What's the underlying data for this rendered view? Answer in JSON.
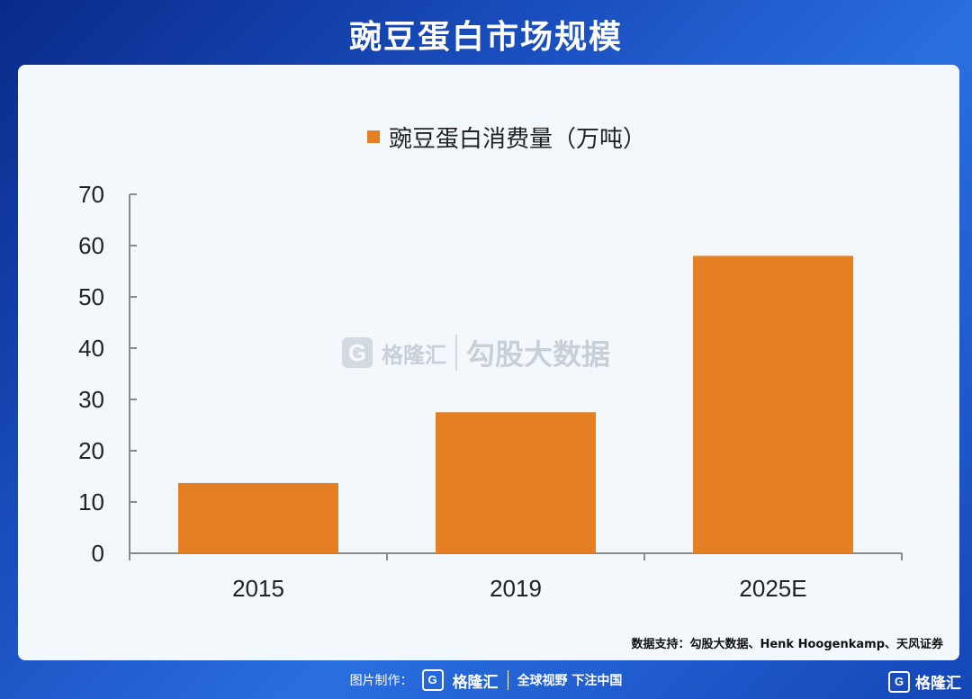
{
  "page": {
    "title": "豌豆蛋白市场规模"
  },
  "chart_data": {
    "type": "bar",
    "categories": [
      "2015",
      "2019",
      "2025E"
    ],
    "series": [
      {
        "name": "豌豆蛋白消费量（万吨）",
        "values": [
          13.7,
          27.5,
          58
        ],
        "color": "#e47f24"
      }
    ],
    "ylim": [
      0,
      70
    ],
    "yticks": [
      0,
      10,
      20,
      30,
      40,
      50,
      60,
      70
    ],
    "legend": {
      "placement": "top-center"
    },
    "grid": false
  },
  "watermark": {
    "icon": "G",
    "brand": "格隆汇",
    "partner": "勾股大数据"
  },
  "source": "数据支持：勾股大数据、Henk Hoogenkamp、天风证券",
  "footer": {
    "label": "图片制作：",
    "logo_icon": "G",
    "brand": "格隆汇",
    "slogan": "全球视野 下注中国"
  },
  "corner": {
    "logo_icon": "G",
    "brand": "格隆汇"
  }
}
